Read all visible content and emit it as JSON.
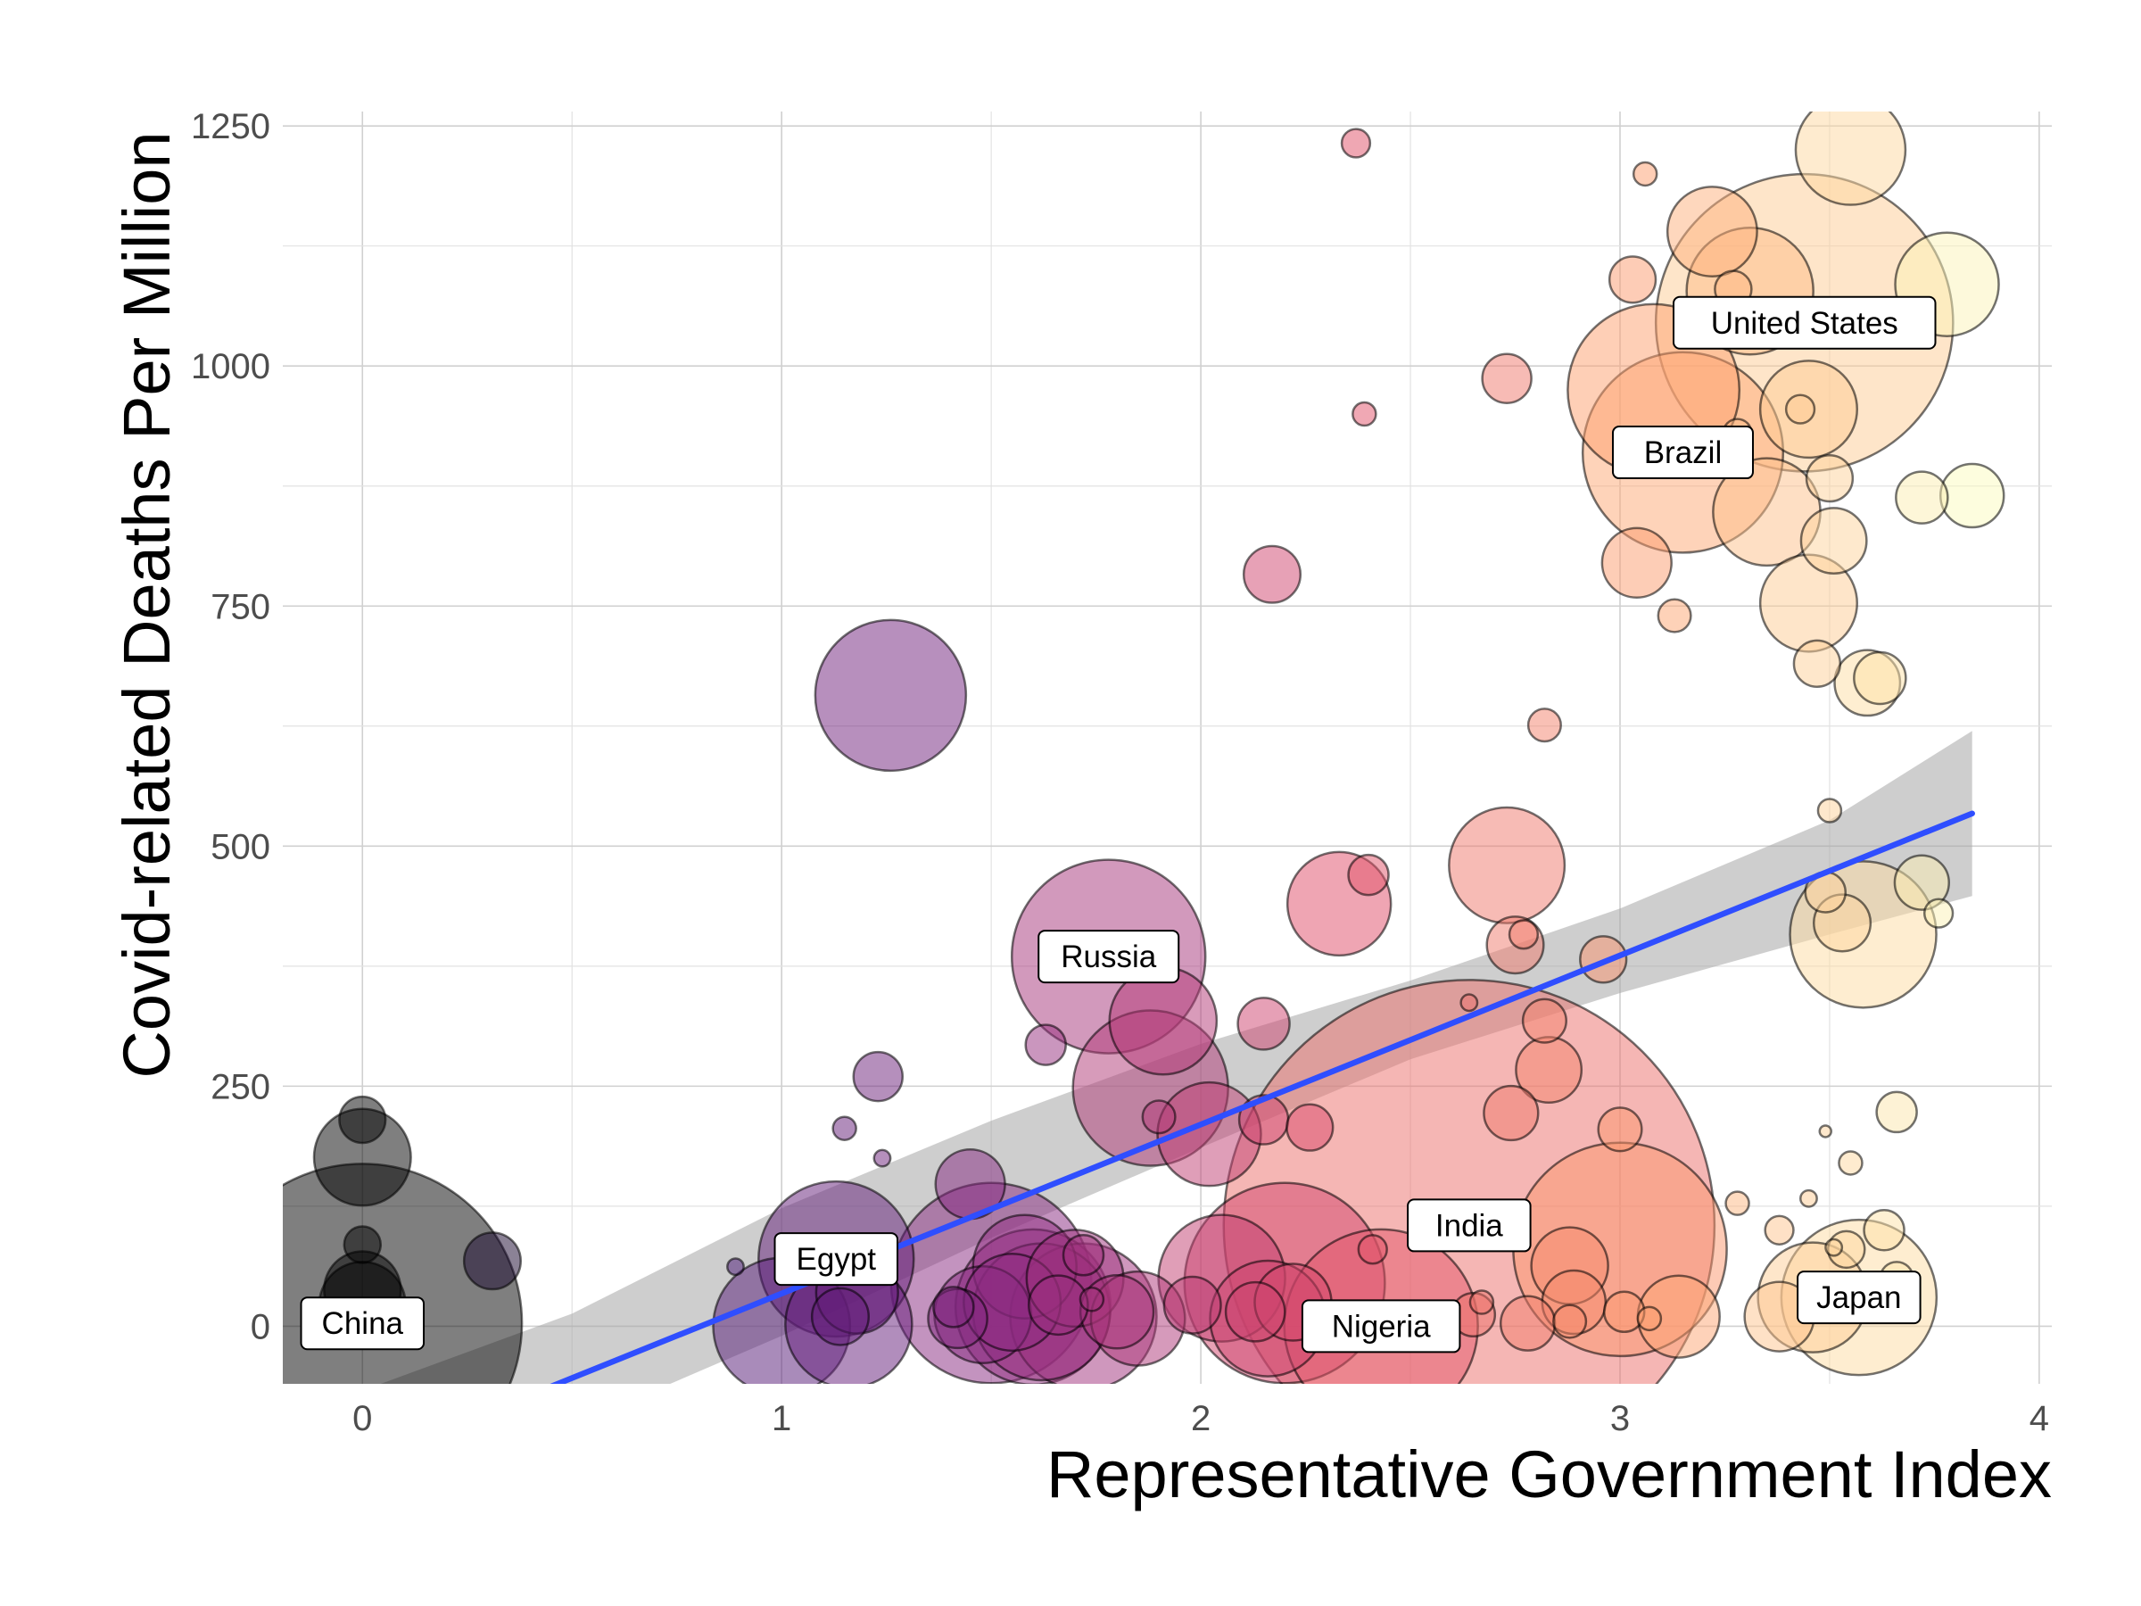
{
  "chart_data": {
    "type": "scatter",
    "xlabel": "Representative Government Index",
    "ylabel": "Covid-related Deaths Per Million",
    "xlim": [
      -0.19,
      4.03
    ],
    "ylim": [
      -60,
      1265
    ],
    "xticks": [
      0,
      1,
      2,
      3,
      4
    ],
    "xtick_labels": [
      "0",
      "1",
      "2",
      "3",
      "4"
    ],
    "yticks": [
      0,
      250,
      500,
      750,
      1000,
      1250
    ],
    "ytick_labels": [
      "0",
      "250",
      "500",
      "750",
      "1000",
      "1250"
    ],
    "grid": true,
    "legend": "none",
    "colors": {
      "palette": [
        "#000000",
        "#3b0f70",
        "#8c2981",
        "#de4968",
        "#fe9f6d",
        "#fcfdbf"
      ],
      "trend": "#2f4eff",
      "band": "#a6a6a6"
    },
    "trend_line": {
      "x": [
        0.0,
        3.84
      ],
      "y": [
        -142,
        534
      ]
    },
    "confidence_band": {
      "x": [
        0.0,
        0.5,
        1.0,
        1.5,
        2.0,
        2.5,
        3.0,
        3.5,
        3.84
      ],
      "lower": [
        -217,
        -104,
        -10,
        92,
        186,
        278,
        347,
        408,
        448
      ],
      "upper": [
        -67,
        13,
        123,
        214,
        294,
        360,
        435,
        527,
        620
      ]
    },
    "points": [
      {
        "x": 0.0,
        "y": 3,
        "size": 38,
        "label": "China"
      },
      {
        "x": 0.0,
        "y": 215,
        "size": 0.8
      },
      {
        "x": 0.0,
        "y": 176,
        "size": 3.5
      },
      {
        "x": 0.0,
        "y": 85,
        "size": 0.5
      },
      {
        "x": 0.0,
        "y": 38,
        "size": 2.2
      },
      {
        "x": 0.0,
        "y": 22,
        "size": 2.8
      },
      {
        "x": 0.31,
        "y": 68,
        "size": 1.2
      },
      {
        "x": 0.89,
        "y": 62,
        "size": 0.1
      },
      {
        "x": 1.0,
        "y": 0,
        "size": 7
      },
      {
        "x": 1.13,
        "y": 70,
        "size": 9,
        "label": "Egypt"
      },
      {
        "x": 1.16,
        "y": 2,
        "size": 6
      },
      {
        "x": 1.18,
        "y": 35,
        "size": 2.5
      },
      {
        "x": 1.14,
        "y": 10,
        "size": 1.2
      },
      {
        "x": 1.15,
        "y": 206,
        "size": 0.2
      },
      {
        "x": 1.24,
        "y": 175,
        "size": 0.1
      },
      {
        "x": 1.23,
        "y": 260,
        "size": 0.9
      },
      {
        "x": 1.26,
        "y": 657,
        "size": 8.5
      },
      {
        "x": 1.45,
        "y": 148,
        "size": 1.8
      },
      {
        "x": 1.41,
        "y": 20,
        "size": 0.6
      },
      {
        "x": 1.42,
        "y": 8,
        "size": 1.3
      },
      {
        "x": 1.5,
        "y": 45,
        "size": 15
      },
      {
        "x": 1.48,
        "y": 12,
        "size": 3.5
      },
      {
        "x": 1.55,
        "y": 25,
        "size": 3.5
      },
      {
        "x": 1.58,
        "y": 62,
        "size": 4
      },
      {
        "x": 1.6,
        "y": 20,
        "size": 9
      },
      {
        "x": 1.62,
        "y": 15,
        "size": 7
      },
      {
        "x": 1.66,
        "y": 22,
        "size": 1.3
      },
      {
        "x": 1.7,
        "y": 50,
        "size": 3.5
      },
      {
        "x": 1.72,
        "y": 10,
        "size": 8
      },
      {
        "x": 1.72,
        "y": 74,
        "size": 0.6
      },
      {
        "x": 1.74,
        "y": 28,
        "size": 0.2
      },
      {
        "x": 1.8,
        "y": 15,
        "size": 2
      },
      {
        "x": 1.85,
        "y": 8,
        "size": 3.3
      },
      {
        "x": 1.63,
        "y": 293,
        "size": 0.6
      },
      {
        "x": 1.78,
        "y": 385,
        "size": 14,
        "label": "Russia"
      },
      {
        "x": 1.91,
        "y": 318,
        "size": 4.3
      },
      {
        "x": 1.88,
        "y": 248,
        "size": 9
      },
      {
        "x": 1.9,
        "y": 218,
        "size": 0.4
      },
      {
        "x": 2.02,
        "y": 200,
        "size": 4
      },
      {
        "x": 1.98,
        "y": 22,
        "size": 1.2
      },
      {
        "x": 2.05,
        "y": 50,
        "size": 6
      },
      {
        "x": 2.15,
        "y": 315,
        "size": 1
      },
      {
        "x": 2.15,
        "y": 215,
        "size": 0.9
      },
      {
        "x": 2.17,
        "y": 783,
        "size": 1.2
      },
      {
        "x": 2.26,
        "y": 207,
        "size": 0.8
      },
      {
        "x": 2.2,
        "y": 45,
        "size": 15
      },
      {
        "x": 2.16,
        "y": 8,
        "size": 5
      },
      {
        "x": 2.22,
        "y": 25,
        "size": 2.2
      },
      {
        "x": 2.13,
        "y": 15,
        "size": 1.3
      },
      {
        "x": 2.33,
        "y": 440,
        "size": 4
      },
      {
        "x": 2.37,
        "y": 1232,
        "size": 0.3
      },
      {
        "x": 2.39,
        "y": 950,
        "size": 0.2
      },
      {
        "x": 2.4,
        "y": 470,
        "size": 0.6
      },
      {
        "x": 2.41,
        "y": 80,
        "size": 0.3
      },
      {
        "x": 2.43,
        "y": 0,
        "size": 14,
        "label": "Nigeria"
      },
      {
        "x": 2.64,
        "y": 337,
        "size": 0.1
      },
      {
        "x": 2.64,
        "y": 105,
        "size": 90,
        "label": "India"
      },
      {
        "x": 2.67,
        "y": 25,
        "size": 0.2
      },
      {
        "x": 2.65,
        "y": 12,
        "size": 0.7
      },
      {
        "x": 2.73,
        "y": 987,
        "size": 0.9
      },
      {
        "x": 2.73,
        "y": 480,
        "size": 5
      },
      {
        "x": 2.74,
        "y": 222,
        "size": 1.1
      },
      {
        "x": 2.75,
        "y": 397,
        "size": 1.2
      },
      {
        "x": 2.77,
        "y": 408,
        "size": 0.3
      },
      {
        "x": 2.78,
        "y": 3,
        "size": 1.1
      },
      {
        "x": 2.82,
        "y": 626,
        "size": 0.4
      },
      {
        "x": 2.82,
        "y": 318,
        "size": 0.7
      },
      {
        "x": 2.83,
        "y": 267,
        "size": 1.6
      },
      {
        "x": 2.88,
        "y": 63,
        "size": 2.2
      },
      {
        "x": 2.89,
        "y": 25,
        "size": 1.5
      },
      {
        "x": 2.88,
        "y": 5,
        "size": 0.4
      },
      {
        "x": 2.96,
        "y": 382,
        "size": 0.8
      },
      {
        "x": 3.0,
        "y": 80,
        "size": 17
      },
      {
        "x": 3.0,
        "y": 205,
        "size": 0.7
      },
      {
        "x": 3.01,
        "y": 15,
        "size": 0.6
      },
      {
        "x": 3.03,
        "y": 1090,
        "size": 0.8
      },
      {
        "x": 3.04,
        "y": 795,
        "size": 1.8
      },
      {
        "x": 3.06,
        "y": 1200,
        "size": 0.2
      },
      {
        "x": 3.07,
        "y": 8,
        "size": 0.2
      },
      {
        "x": 3.08,
        "y": 975,
        "size": 11
      },
      {
        "x": 3.13,
        "y": 740,
        "size": 0.4
      },
      {
        "x": 3.15,
        "y": 910,
        "size": 15,
        "label": "Brazil"
      },
      {
        "x": 3.14,
        "y": 10,
        "size": 2.5
      },
      {
        "x": 3.22,
        "y": 1140,
        "size": 3
      },
      {
        "x": 3.27,
        "y": 1080,
        "size": 0.5
      },
      {
        "x": 3.28,
        "y": 930,
        "size": 0.3
      },
      {
        "x": 3.31,
        "y": 1078,
        "size": 6
      },
      {
        "x": 3.35,
        "y": 848,
        "size": 4.3
      },
      {
        "x": 3.28,
        "y": 128,
        "size": 0.2
      },
      {
        "x": 3.38,
        "y": 100,
        "size": 0.3
      },
      {
        "x": 3.38,
        "y": 10,
        "size": 1.8
      },
      {
        "x": 3.44,
        "y": 1045,
        "size": 33,
        "label": "United States"
      },
      {
        "x": 3.43,
        "y": 955,
        "size": 0.3
      },
      {
        "x": 3.45,
        "y": 955,
        "size": 3.5
      },
      {
        "x": 3.45,
        "y": 753,
        "size": 3.5
      },
      {
        "x": 3.45,
        "y": 133,
        "size": 0.1
      },
      {
        "x": 3.46,
        "y": 30,
        "size": 4.5
      },
      {
        "x": 3.47,
        "y": 690,
        "size": 0.8
      },
      {
        "x": 3.49,
        "y": 452,
        "size": 0.6
      },
      {
        "x": 3.49,
        "y": 203,
        "size": 0.05
      },
      {
        "x": 3.5,
        "y": 883,
        "size": 0.8
      },
      {
        "x": 3.5,
        "y": 537,
        "size": 0.2
      },
      {
        "x": 3.51,
        "y": 818,
        "size": 1.6
      },
      {
        "x": 3.51,
        "y": 82,
        "size": 0.1
      },
      {
        "x": 3.53,
        "y": 420,
        "size": 1.2
      },
      {
        "x": 3.54,
        "y": 80,
        "size": 0.5
      },
      {
        "x": 3.55,
        "y": 170,
        "size": 0.2
      },
      {
        "x": 3.55,
        "y": 1225,
        "size": 4.5
      },
      {
        "x": 3.57,
        "y": 30,
        "size": 9,
        "label": "Japan"
      },
      {
        "x": 3.58,
        "y": 408,
        "size": 8
      },
      {
        "x": 3.59,
        "y": 670,
        "size": 1.6
      },
      {
        "x": 3.62,
        "y": 675,
        "size": 1
      },
      {
        "x": 3.63,
        "y": 100,
        "size": 0.6
      },
      {
        "x": 3.66,
        "y": 223,
        "size": 0.6
      },
      {
        "x": 3.66,
        "y": 50,
        "size": 0.4
      },
      {
        "x": 3.72,
        "y": 863,
        "size": 1
      },
      {
        "x": 3.72,
        "y": 462,
        "size": 1.1
      },
      {
        "x": 3.76,
        "y": 430,
        "size": 0.3
      },
      {
        "x": 3.78,
        "y": 1085,
        "size": 4
      },
      {
        "x": 3.84,
        "y": 865,
        "size": 1.5
      }
    ]
  }
}
